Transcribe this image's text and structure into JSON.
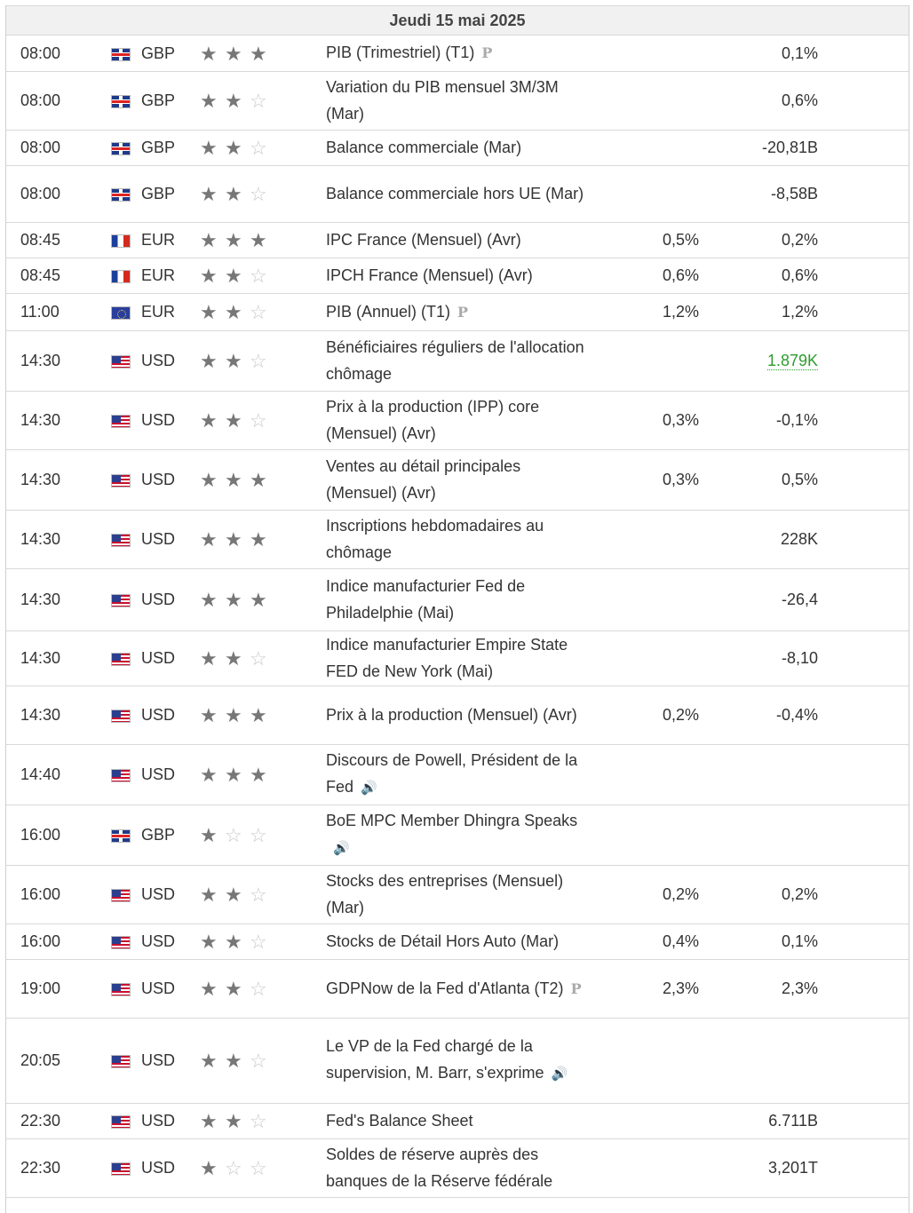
{
  "date_header": "Jeudi 15 mai 2025",
  "rows": [
    {
      "time": "08:00",
      "flag": "gb",
      "currency": "GBP",
      "stars": 3,
      "event": "PIB (Trimestriel) (T1)",
      "badge": "P",
      "forecast": "",
      "previous": "0,1%"
    },
    {
      "time": "08:00",
      "flag": "gb",
      "currency": "GBP",
      "stars": 2,
      "event": "Variation du PIB mensuel 3M/3M (Mar)",
      "badge": "",
      "forecast": "",
      "previous": "0,6%"
    },
    {
      "time": "08:00",
      "flag": "gb",
      "currency": "GBP",
      "stars": 2,
      "event": "Balance commerciale (Mar)",
      "badge": "",
      "forecast": "",
      "previous": "-20,81B"
    },
    {
      "time": "08:00",
      "flag": "gb",
      "currency": "GBP",
      "stars": 2,
      "event": "Balance commerciale hors UE (Mar)",
      "badge": "",
      "forecast": "",
      "previous": "-8,58B"
    },
    {
      "time": "08:45",
      "flag": "fr",
      "currency": "EUR",
      "stars": 3,
      "event": "IPC France (Mensuel) (Avr)",
      "badge": "",
      "forecast": "0,5%",
      "previous": "0,2%"
    },
    {
      "time": "08:45",
      "flag": "fr",
      "currency": "EUR",
      "stars": 2,
      "event": "IPCH France (Mensuel) (Avr)",
      "badge": "",
      "forecast": "0,6%",
      "previous": "0,6%"
    },
    {
      "time": "11:00",
      "flag": "eu",
      "currency": "EUR",
      "stars": 2,
      "event": "PIB (Annuel) (T1)",
      "badge": "P",
      "forecast": "1,2%",
      "previous": "1,2%"
    },
    {
      "time": "14:30",
      "flag": "us",
      "currency": "USD",
      "stars": 2,
      "event": "Bénéficiaires réguliers de l'allocation chômage",
      "badge": "",
      "forecast": "",
      "previous": "1.879K",
      "previous_color": "green"
    },
    {
      "time": "14:30",
      "flag": "us",
      "currency": "USD",
      "stars": 2,
      "event": "Prix à la production (IPP) core (Mensuel) (Avr)",
      "badge": "",
      "forecast": "0,3%",
      "previous": "-0,1%"
    },
    {
      "time": "14:30",
      "flag": "us",
      "currency": "USD",
      "stars": 3,
      "event": "Ventes au détail principales (Mensuel) (Avr)",
      "badge": "",
      "forecast": "0,3%",
      "previous": "0,5%"
    },
    {
      "time": "14:30",
      "flag": "us",
      "currency": "USD",
      "stars": 3,
      "event": "Inscriptions hebdomadaires au chômage",
      "badge": "",
      "forecast": "",
      "previous": "228K"
    },
    {
      "time": "14:30",
      "flag": "us",
      "currency": "USD",
      "stars": 3,
      "event": "Indice manufacturier Fed de Philadelphie (Mai)",
      "badge": "",
      "forecast": "",
      "previous": "-26,4"
    },
    {
      "time": "14:30",
      "flag": "us",
      "currency": "USD",
      "stars": 2,
      "event": "Indice manufacturier Empire State FED de New York (Mai)",
      "badge": "",
      "forecast": "",
      "previous": "-8,10"
    },
    {
      "time": "14:30",
      "flag": "us",
      "currency": "USD",
      "stars": 3,
      "event": "Prix à la production (Mensuel) (Avr)",
      "badge": "",
      "forecast": "0,2%",
      "previous": "-0,4%"
    },
    {
      "time": "14:40",
      "flag": "us",
      "currency": "USD",
      "stars": 3,
      "event": "Discours de Powell, Président de la Fed",
      "badge": "speaker",
      "forecast": "",
      "previous": ""
    },
    {
      "time": "16:00",
      "flag": "gb",
      "currency": "GBP",
      "stars": 1,
      "event": "BoE MPC Member Dhingra Speaks",
      "badge": "speaker",
      "forecast": "",
      "previous": ""
    },
    {
      "time": "16:00",
      "flag": "us",
      "currency": "USD",
      "stars": 2,
      "event": "Stocks des entreprises (Mensuel) (Mar)",
      "badge": "",
      "forecast": "0,2%",
      "previous": "0,2%"
    },
    {
      "time": "16:00",
      "flag": "us",
      "currency": "USD",
      "stars": 2,
      "event": "Stocks de Détail Hors Auto (Mar)",
      "badge": "",
      "forecast": "0,4%",
      "previous": "0,1%"
    },
    {
      "time": "19:00",
      "flag": "us",
      "currency": "USD",
      "stars": 2,
      "event": "GDPNow de la Fed d'Atlanta (T2)",
      "badge": "P",
      "forecast": "2,3%",
      "previous": "2,3%"
    },
    {
      "time": "20:05",
      "flag": "us",
      "currency": "USD",
      "stars": 2,
      "event": "Le VP de la Fed chargé de la supervision, M. Barr, s'exprime",
      "badge": "speaker",
      "forecast": "",
      "previous": ""
    },
    {
      "time": "22:30",
      "flag": "us",
      "currency": "USD",
      "stars": 2,
      "event": "Fed's Balance Sheet",
      "badge": "",
      "forecast": "",
      "previous": "6.711B"
    },
    {
      "time": "22:30",
      "flag": "us",
      "currency": "USD",
      "stars": 1,
      "event": "Soldes de réserve auprès des banques de la Réserve fédérale",
      "badge": "",
      "forecast": "",
      "previous": "3,201T"
    }
  ]
}
